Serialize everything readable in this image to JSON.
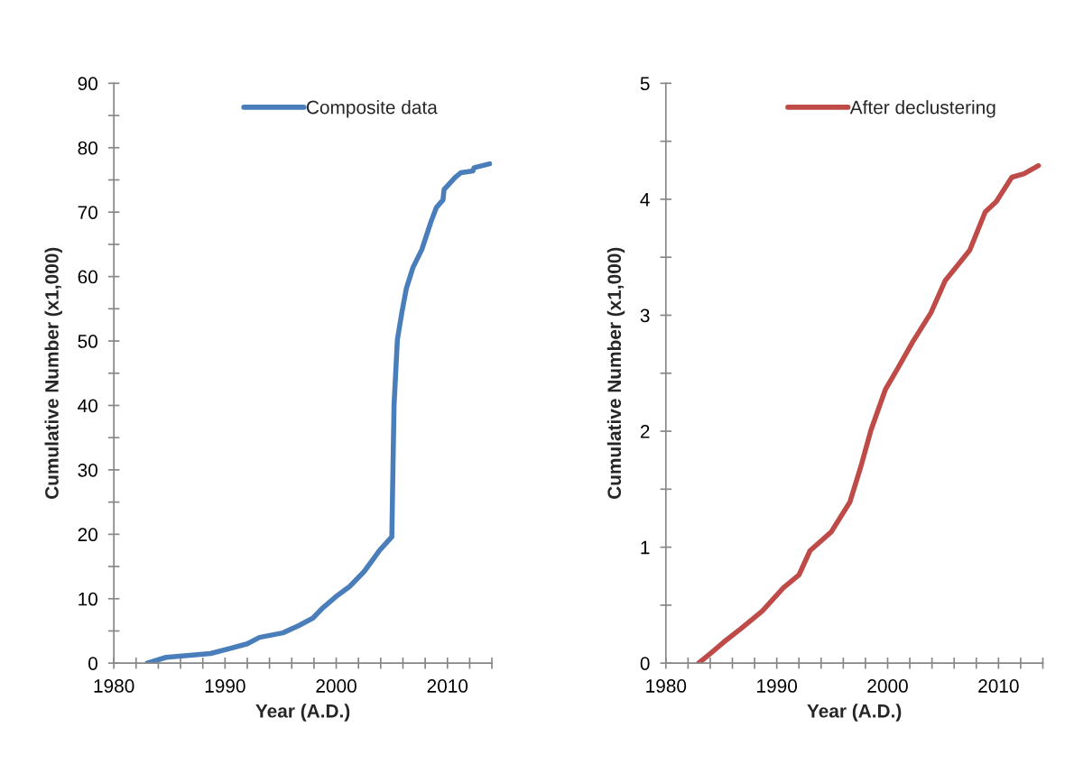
{
  "chart_data": [
    {
      "type": "line",
      "xlabel": "Year (A.D.)",
      "ylabel": "Cumulative Number (x1,000)",
      "legend": "top",
      "grid": false,
      "marker": "none",
      "line_style": "solid",
      "xlim": [
        1980,
        2014
      ],
      "ylim": [
        0,
        90
      ],
      "xticks": [
        1980,
        {
          "value": 1982,
          "label": null
        },
        {
          "value": 1984,
          "label": null
        },
        {
          "value": 1986,
          "label": null
        },
        {
          "value": 1988,
          "label": null
        },
        1990,
        {
          "value": 1992,
          "label": null
        },
        {
          "value": 1994,
          "label": null
        },
        {
          "value": 1996,
          "label": null
        },
        {
          "value": 1998,
          "label": null
        },
        2000,
        {
          "value": 2002,
          "label": null
        },
        {
          "value": 2004,
          "label": null
        },
        {
          "value": 2006,
          "label": null
        },
        {
          "value": 2008,
          "label": null
        },
        2010,
        {
          "value": 2012,
          "label": null
        },
        {
          "value": 2014,
          "label": null
        }
      ],
      "yticks": [
        0,
        {
          "value": 5,
          "label": null
        },
        10,
        {
          "value": 15,
          "label": null
        },
        20,
        {
          "value": 25,
          "label": null
        },
        30,
        {
          "value": 35,
          "label": null
        },
        40,
        {
          "value": 45,
          "label": null
        },
        50,
        {
          "value": 55,
          "label": null
        },
        60,
        {
          "value": 65,
          "label": null
        },
        70,
        {
          "value": 75,
          "label": null
        },
        80,
        {
          "value": 85,
          "label": null
        },
        90
      ],
      "series": [
        {
          "name": "Composite data",
          "color": "#4a7ebb",
          "x": [
            1983.0,
            1984.7,
            1988.7,
            1992.0,
            1993.1,
            1995.2,
            1996.6,
            1997.9,
            1998.8,
            2000.1,
            2001.2,
            2002.5,
            2003.1,
            2003.9,
            2005.0,
            2005.1,
            2005.2,
            2005.5,
            2005.9,
            2006.3,
            2006.9,
            2007.7,
            2008.5,
            2009.0,
            2009.6,
            2009.7,
            2010.7,
            2011.2,
            2012.3,
            2012.4,
            2013.8
          ],
          "values": [
            0,
            0.9,
            1.5,
            3.0,
            4.0,
            4.7,
            5.8,
            7.0,
            8.6,
            10.5,
            11.9,
            14.2,
            15.6,
            17.5,
            19.6,
            30.0,
            40.0,
            50.2,
            54.4,
            58.1,
            61.4,
            64.2,
            68.4,
            70.7,
            71.9,
            73.5,
            75.4,
            76.1,
            76.4,
            76.9,
            77.5
          ]
        }
      ]
    },
    {
      "type": "line",
      "xlabel": "Year (A.D.)",
      "ylabel": "Cumulative Number (x1,000)",
      "legend": "top",
      "grid": false,
      "marker": "none",
      "line_style": "solid",
      "xlim": [
        1980,
        2014
      ],
      "ylim": [
        0,
        5
      ],
      "xticks": [
        1980,
        {
          "value": 1982,
          "label": null
        },
        {
          "value": 1984,
          "label": null
        },
        {
          "value": 1986,
          "label": null
        },
        {
          "value": 1988,
          "label": null
        },
        1990,
        {
          "value": 1992,
          "label": null
        },
        {
          "value": 1994,
          "label": null
        },
        {
          "value": 1996,
          "label": null
        },
        {
          "value": 1998,
          "label": null
        },
        2000,
        {
          "value": 2002,
          "label": null
        },
        {
          "value": 2004,
          "label": null
        },
        {
          "value": 2006,
          "label": null
        },
        {
          "value": 2008,
          "label": null
        },
        2010,
        {
          "value": 2012,
          "label": null
        },
        {
          "value": 2014,
          "label": null
        }
      ],
      "yticks": [
        0,
        {
          "value": 0.5,
          "label": null
        },
        1,
        {
          "value": 1.5,
          "label": null
        },
        2,
        {
          "value": 2.5,
          "label": null
        },
        3,
        {
          "value": 3.5,
          "label": null
        },
        4,
        {
          "value": 4.5,
          "label": null
        },
        5
      ],
      "series": [
        {
          "name": "After declustering",
          "color": "#be4b48",
          "x": [
            1982.95,
            1984.1,
            1985.2,
            1986.8,
            1988.7,
            1990.6,
            1992.0,
            1993.0,
            1994.9,
            1996.6,
            1997.6,
            1998.5,
            1999.8,
            2000.9,
            2002.2,
            2003.9,
            2005.2,
            2007.4,
            2008.8,
            2009.8,
            2011.2,
            2012.3,
            2013.6
          ],
          "values": [
            0,
            0.09,
            0.18,
            0.3,
            0.45,
            0.65,
            0.76,
            0.97,
            1.13,
            1.39,
            1.7,
            2.01,
            2.36,
            2.54,
            2.76,
            3.02,
            3.3,
            3.56,
            3.89,
            3.98,
            4.19,
            4.22,
            4.29
          ]
        }
      ]
    }
  ]
}
